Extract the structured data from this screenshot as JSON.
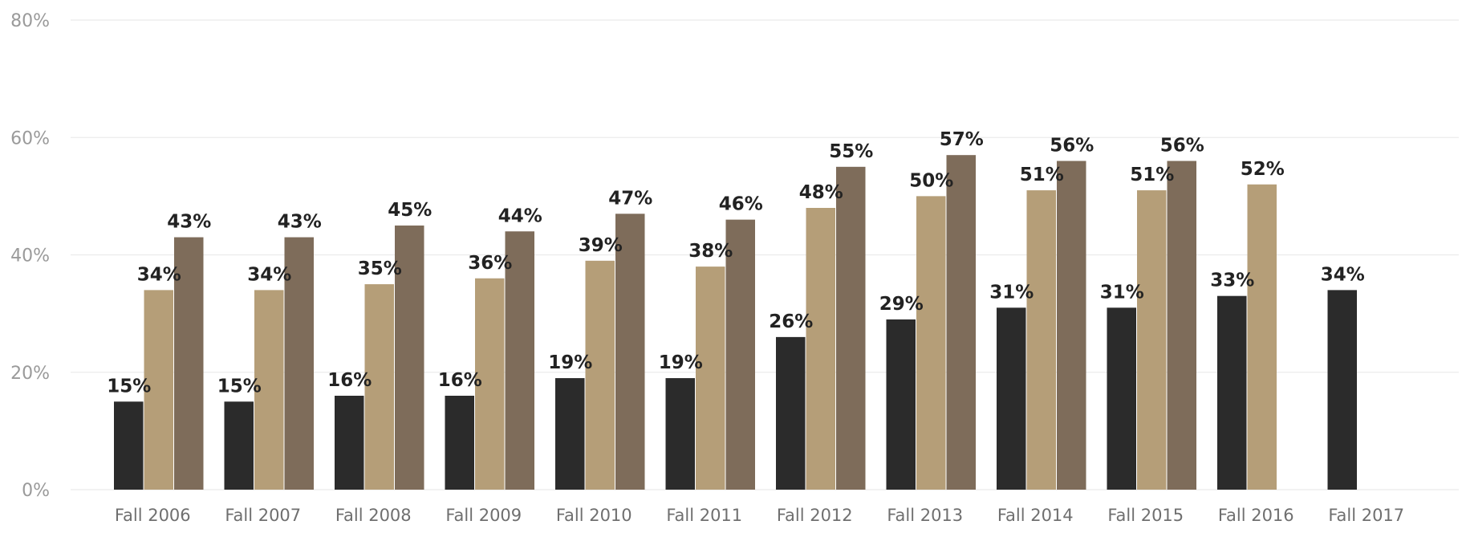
{
  "chart_data": {
    "type": "bar",
    "categories": [
      "Fall 2006",
      "Fall 2007",
      "Fall 2008",
      "Fall 2009",
      "Fall 2010",
      "Fall 2011",
      "Fall 2012",
      "Fall 2013",
      "Fall 2014",
      "Fall 2015",
      "Fall 2016",
      "Fall 2017"
    ],
    "series": [
      {
        "color": "#2b2b2b",
        "values": [
          15,
          15,
          16,
          16,
          19,
          19,
          26,
          29,
          31,
          31,
          33,
          34
        ],
        "labels": [
          "15%",
          "15%",
          "16%",
          "16%",
          "19%",
          "19%",
          "26%",
          "29%",
          "31%",
          "31%",
          "33%",
          "34%"
        ]
      },
      {
        "color": "#b59e78",
        "values": [
          34,
          34,
          35,
          36,
          39,
          38,
          48,
          50,
          51,
          51,
          52,
          null
        ],
        "labels": [
          "34%",
          "34%",
          "35%",
          "36%",
          "39%",
          "38%",
          "48%",
          "50%",
          "51%",
          "51%",
          "52%",
          null
        ]
      },
      {
        "color": "#7e6c5a",
        "values": [
          43,
          43,
          45,
          44,
          47,
          46,
          55,
          57,
          56,
          56,
          null,
          null
        ],
        "labels": [
          "43%",
          "43%",
          "45%",
          "44%",
          "47%",
          "46%",
          "55%",
          "57%",
          "56%",
          "56%",
          null,
          null
        ]
      }
    ],
    "yticks": [
      "0%",
      "20%",
      "40%",
      "60%",
      "80%"
    ],
    "ylim": [
      0,
      80
    ],
    "grid": true,
    "legend": "none"
  }
}
